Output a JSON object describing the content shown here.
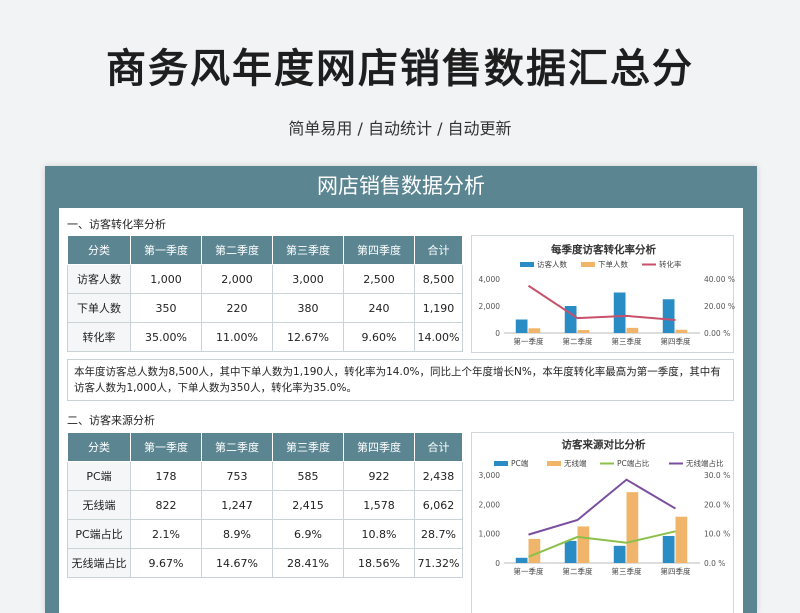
{
  "header": {
    "title": "商务风年度网店销售数据汇总分",
    "subtitle": "简单易用 / 自动统计 / 自动更新"
  },
  "sheet": {
    "banner": "网店销售数据分析",
    "section1": {
      "title": "一、访客转化率分析",
      "columns": [
        "分类",
        "第一季度",
        "第二季度",
        "第三季度",
        "第四季度",
        "合计"
      ],
      "rows": [
        [
          "访客人数",
          "1,000",
          "2,000",
          "3,000",
          "2,500",
          "8,500"
        ],
        [
          "下单人数",
          "350",
          "220",
          "380",
          "240",
          "1,190"
        ],
        [
          "转化率",
          "35.00%",
          "11.00%",
          "12.67%",
          "9.60%",
          "14.00%"
        ]
      ],
      "summary": "本年度访客总人数为8,500人，其中下单人数为1,190人，转化率为14.0%，同比上个年度增长N%，本年度转化率最高为第一季度，其中有访客人数为1,000人，下单人数为350人，转化率为35.0%。"
    },
    "section2": {
      "title": "二、访客来源分析",
      "columns": [
        "分类",
        "第一季度",
        "第二季度",
        "第三季度",
        "第四季度",
        "合计"
      ],
      "rows": [
        [
          "PC端",
          "178",
          "753",
          "585",
          "922",
          "2,438"
        ],
        [
          "无线端",
          "822",
          "1,247",
          "2,415",
          "1,578",
          "6,062"
        ],
        [
          "PC端占比",
          "2.1%",
          "8.9%",
          "6.9%",
          "10.8%",
          "28.7%"
        ],
        [
          "无线端占比",
          "9.67%",
          "14.67%",
          "28.41%",
          "18.56%",
          "71.32%"
        ]
      ]
    }
  },
  "chart_data": [
    {
      "type": "bar",
      "title": "每季度访客转化率分析",
      "categories": [
        "第一季度",
        "第二季度",
        "第三季度",
        "第四季度"
      ],
      "series": [
        {
          "name": "访客人数",
          "kind": "bar",
          "axis": "left",
          "values": [
            1000,
            2000,
            3000,
            2500
          ],
          "color": "#2a8cc4"
        },
        {
          "name": "下单人数",
          "kind": "bar",
          "axis": "left",
          "values": [
            350,
            220,
            380,
            240
          ],
          "color": "#f0b56b"
        },
        {
          "name": "转化率",
          "kind": "line",
          "axis": "right",
          "values": [
            35.0,
            11.0,
            12.67,
            9.6
          ],
          "color": "#c8506a"
        }
      ],
      "ylim": [
        0,
        4000
      ],
      "yticks": [
        "0",
        "2,000",
        "4,000"
      ],
      "ylim_right": [
        0,
        40
      ],
      "yticks_right": [
        "0.00 %",
        "20.00 %",
        "40.00 %"
      ],
      "legend": "top"
    },
    {
      "type": "bar",
      "title": "访客来源对比分析",
      "categories": [
        "第一季度",
        "第二季度",
        "第三季度",
        "第四季度"
      ],
      "series": [
        {
          "name": "PC端",
          "kind": "bar",
          "axis": "left",
          "values": [
            178,
            753,
            585,
            922
          ],
          "color": "#2a8cc4"
        },
        {
          "name": "无线端",
          "kind": "bar",
          "axis": "left",
          "values": [
            822,
            1247,
            2415,
            1578
          ],
          "color": "#f0b56b"
        },
        {
          "name": "PC端占比",
          "kind": "line",
          "axis": "right",
          "values": [
            2.1,
            8.9,
            6.9,
            10.8
          ],
          "color": "#8cc04a"
        },
        {
          "name": "无线端占比",
          "kind": "line",
          "axis": "right",
          "values": [
            9.67,
            14.67,
            28.41,
            18.56
          ],
          "color": "#7b4fa0"
        }
      ],
      "ylim": [
        0,
        3000
      ],
      "yticks": [
        "0",
        "1,000",
        "2,000",
        "3,000"
      ],
      "ylim_right": [
        0,
        30
      ],
      "yticks_right": [
        "0.0 %",
        "10.0 %",
        "20.0 %",
        "30.0 %"
      ],
      "legend": "top"
    }
  ]
}
